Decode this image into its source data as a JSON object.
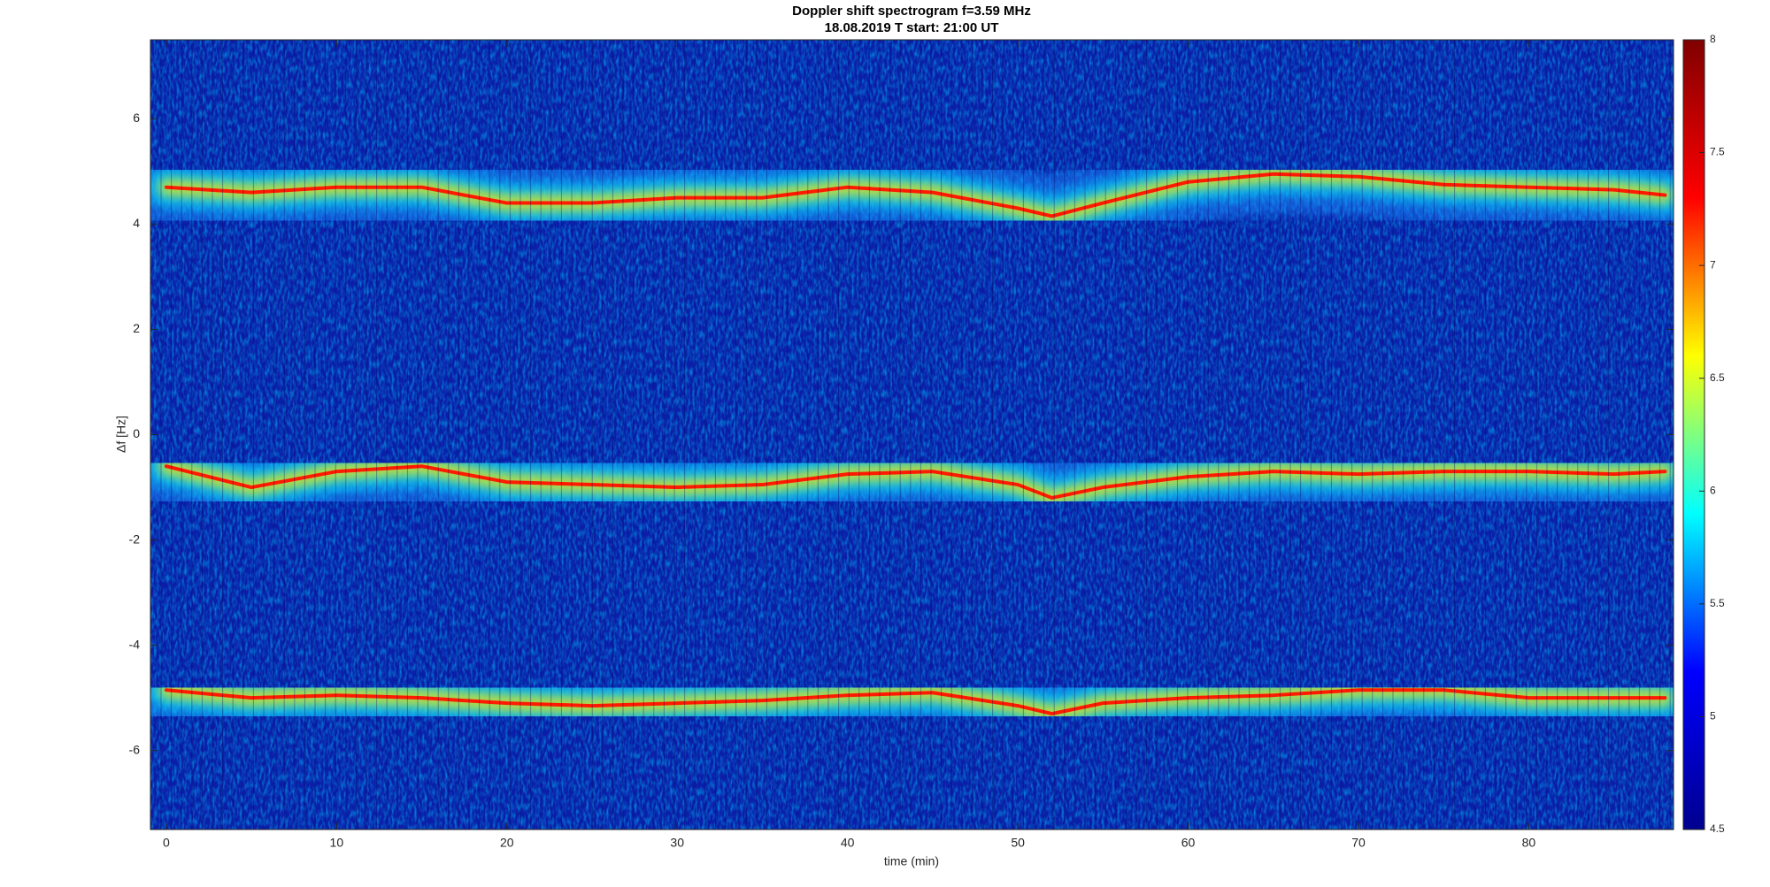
{
  "chart_data": {
    "type": "spectrogram",
    "title": "Doppler shift spectrogram f=3.59 MHz",
    "subtitle": "18.08.2019   T start: 21:00 UT",
    "xlabel": "time (min)",
    "ylabel": "Δf [Hz]",
    "x": [
      0,
      5,
      10,
      15,
      20,
      25,
      30,
      35,
      40,
      45,
      50,
      52,
      55,
      60,
      65,
      70,
      75,
      80,
      85,
      88
    ],
    "series": [
      {
        "values": [
          4.7,
          4.6,
          4.7,
          4.7,
          4.4,
          4.4,
          4.5,
          4.5,
          4.7,
          4.6,
          4.3,
          4.15,
          4.4,
          4.8,
          4.95,
          4.9,
          4.75,
          4.7,
          4.65,
          4.55
        ]
      },
      {
        "values": [
          -0.6,
          -1.0,
          -0.7,
          -0.6,
          -0.9,
          -0.95,
          -1.0,
          -0.95,
          -0.75,
          -0.7,
          -0.95,
          -1.2,
          -1.0,
          -0.8,
          -0.7,
          -0.75,
          -0.7,
          -0.7,
          -0.75,
          -0.7
        ]
      },
      {
        "values": [
          -4.85,
          -5.0,
          -4.95,
          -5.0,
          -5.1,
          -5.15,
          -5.1,
          -5.05,
          -4.95,
          -4.9,
          -5.15,
          -5.3,
          -5.1,
          -5.0,
          -4.95,
          -4.85,
          -4.85,
          -5.0,
          -5.0,
          -5.0
        ]
      }
    ],
    "xlim": [
      -0.93,
      88.5
    ],
    "xticks": [
      0,
      10,
      20,
      30,
      40,
      50,
      60,
      70,
      80
    ],
    "ylim": [
      -7.5,
      7.5
    ],
    "yticks": [
      -6,
      -4,
      -2,
      0,
      2,
      4,
      6
    ],
    "colormap": "jet",
    "clim": [
      4.5,
      8
    ],
    "cticks": [
      4.5,
      5,
      5.5,
      6,
      6.5,
      7,
      7.5,
      8
    ]
  }
}
